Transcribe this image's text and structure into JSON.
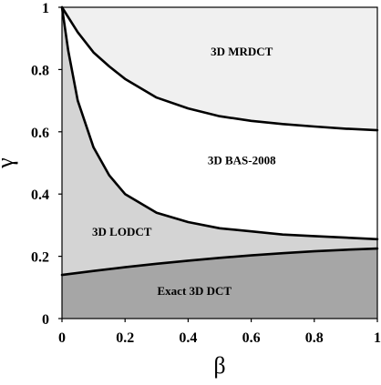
{
  "chart_data": {
    "type": "area",
    "title": "",
    "xlabel": "β",
    "ylabel": "γ",
    "xlim": [
      0,
      1
    ],
    "ylim": [
      0,
      1
    ],
    "x_ticks": [
      "0",
      "0.2",
      "0.4",
      "0.6",
      "0.8",
      "1"
    ],
    "y_ticks": [
      "0",
      "0.2",
      "0.4",
      "0.6",
      "0.8",
      "1"
    ],
    "grid": false,
    "colors": {
      "exact": "#a6a6a6",
      "lodct": "#d4d4d4",
      "bas": "#ffffff",
      "mrdct": "#f0f0f0",
      "line": "#000000"
    },
    "region_labels": [
      {
        "id": "mrdct",
        "text": "3D MRDCT",
        "x": 0.57,
        "y": 0.86
      },
      {
        "id": "bas",
        "text": "3D BAS-2008",
        "x": 0.57,
        "y": 0.51
      },
      {
        "id": "lodct",
        "text": "3D LODCT",
        "x": 0.19,
        "y": 0.28
      },
      {
        "id": "exact",
        "text": "Exact 3D DCT",
        "x": 0.42,
        "y": 0.09
      }
    ],
    "series": [
      {
        "id": "boundary-lower",
        "x": [
          0,
          0.1,
          0.2,
          0.3,
          0.4,
          0.5,
          0.6,
          0.7,
          0.8,
          0.9,
          1.0
        ],
        "y": [
          0.14,
          0.153,
          0.165,
          0.176,
          0.186,
          0.195,
          0.203,
          0.21,
          0.216,
          0.221,
          0.225
        ]
      },
      {
        "id": "boundary-middle",
        "x": [
          0,
          0.02,
          0.05,
          0.1,
          0.15,
          0.2,
          0.3,
          0.4,
          0.5,
          0.6,
          0.7,
          0.8,
          0.9,
          1.0
        ],
        "y": [
          1.0,
          0.86,
          0.7,
          0.55,
          0.46,
          0.4,
          0.34,
          0.31,
          0.29,
          0.28,
          0.27,
          0.265,
          0.26,
          0.255
        ]
      },
      {
        "id": "boundary-upper",
        "x": [
          0,
          0.05,
          0.1,
          0.15,
          0.2,
          0.3,
          0.4,
          0.5,
          0.6,
          0.7,
          0.8,
          0.9,
          1.0
        ],
        "y": [
          1.0,
          0.92,
          0.855,
          0.81,
          0.77,
          0.71,
          0.675,
          0.65,
          0.635,
          0.625,
          0.617,
          0.61,
          0.605
        ]
      }
    ]
  }
}
